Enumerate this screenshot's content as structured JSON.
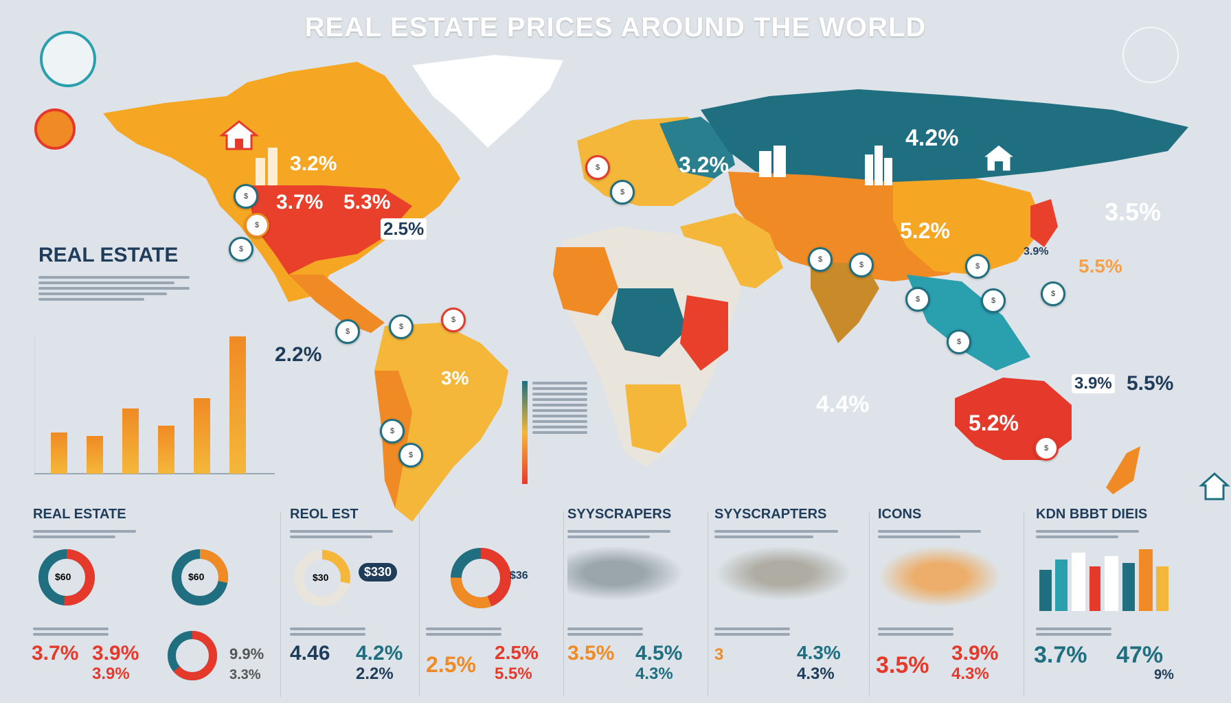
{
  "title": "REAL ESTATE PRICES  AROUND THE WORLD",
  "map_labels": [
    {
      "text": "3.2%",
      "color": "#ffffff"
    },
    {
      "text": "3.7%",
      "color": "#ffffff"
    },
    {
      "text": "5.3%",
      "color": "#ffffff"
    },
    {
      "text": "2.5%",
      "color": "#1f3c5a"
    },
    {
      "text": "3.2%",
      "color": "#ffffff"
    },
    {
      "text": "4.2%",
      "color": "#ffffff"
    },
    {
      "text": "5.2%",
      "color": "#ffffff"
    },
    {
      "text": "3.9%",
      "color": "#1f3c5a"
    },
    {
      "text": "3.5%",
      "color": "#ffffff"
    },
    {
      "text": "5.5%",
      "color": "#f3a14a"
    },
    {
      "text": "3%",
      "color": "#ffffff"
    },
    {
      "text": "4.4%",
      "color": "#ffffff"
    },
    {
      "text": "5.2%",
      "color": "#ffffff"
    },
    {
      "text": "3.9%",
      "color": "#1f3c5a"
    },
    {
      "text": "5.5%",
      "color": "#1f3c5a"
    },
    {
      "text": "2.2%",
      "color": "#1f3c5a"
    }
  ],
  "left_panel": {
    "heading": "REAL ESTATE",
    "bar_chart": {
      "values": [
        12,
        11,
        19,
        14,
        22,
        40
      ]
    }
  },
  "bottom_sections": [
    {
      "title": "REAL ESTATE",
      "stat1": "3.7%",
      "stat2": "3.9%",
      "stat3": "3.9%",
      "donut_label": "$60",
      "donut2_label": "$60",
      "side_stat1": "9.9%",
      "side_stat2": "3.3%"
    },
    {
      "title": "REOL EST",
      "stat1": "4.46",
      "stat2": "4.2%",
      "stat3": "2.2%",
      "donut_label": "$30",
      "pill": "$330"
    },
    {
      "title": "",
      "stat1": "2.5%",
      "stat2": "2.5%",
      "stat3": "5.5%",
      "donut_label": "$36"
    },
    {
      "title": "SYYSCRAPERS",
      "stat1": "3.5%",
      "stat2": "4.5%",
      "stat3": "4.3%"
    },
    {
      "title": "SYYSCRAPTERS",
      "stat1": "3",
      "stat2": "4.3%",
      "stat3": "4.3%"
    },
    {
      "title": "ICONS",
      "stat1": "3.5%",
      "stat2": "3.9%",
      "stat3": "4.3%"
    },
    {
      "title": "KDN BBBT DIEIS",
      "stat1": "3.7%",
      "stat2": "47%",
      "stat3": "9%"
    }
  ],
  "colors": {
    "teal": "#1f6f80",
    "orange": "#f08a24",
    "yellow": "#f4b73a",
    "red": "#e53a2b",
    "dark": "#1f3c5a"
  },
  "icons": [
    "house-icon",
    "building-icon",
    "skyscraper-icon",
    "location-pin-icon",
    "globe-icon"
  ]
}
